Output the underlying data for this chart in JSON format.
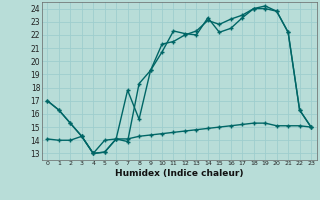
{
  "xlabel": "Humidex (Indice chaleur)",
  "bg_color": "#b8ddd8",
  "grid_color": "#9ecece",
  "line_color": "#006666",
  "x_ticks": [
    0,
    1,
    2,
    3,
    4,
    5,
    6,
    7,
    8,
    9,
    10,
    11,
    12,
    13,
    14,
    15,
    16,
    17,
    18,
    19,
    20,
    21,
    22,
    23
  ],
  "y_ticks": [
    13,
    14,
    15,
    16,
    17,
    18,
    19,
    20,
    21,
    22,
    23,
    24
  ],
  "xlim": [
    -0.5,
    23.5
  ],
  "ylim": [
    12.5,
    24.5
  ],
  "line1_x": [
    0,
    1,
    2,
    3,
    4,
    5,
    6,
    7,
    8,
    9,
    10,
    11,
    12,
    13,
    14,
    15,
    16,
    17,
    18,
    19,
    20,
    21,
    22,
    23
  ],
  "line1_y": [
    17.0,
    16.3,
    15.3,
    14.3,
    13.0,
    13.1,
    14.1,
    17.8,
    15.6,
    19.3,
    20.7,
    22.3,
    22.1,
    22.0,
    23.3,
    22.2,
    22.5,
    23.3,
    24.0,
    24.0,
    23.8,
    22.2,
    16.3,
    15.0
  ],
  "line2_x": [
    0,
    1,
    2,
    3,
    4,
    5,
    6,
    7,
    8,
    9,
    10,
    11,
    12,
    13,
    14,
    15,
    16,
    17,
    18,
    19,
    20,
    21,
    22,
    23
  ],
  "line2_y": [
    17.0,
    16.3,
    15.3,
    14.3,
    13.0,
    13.1,
    14.1,
    13.9,
    18.3,
    19.3,
    21.3,
    21.5,
    22.0,
    22.3,
    23.1,
    22.8,
    23.2,
    23.5,
    24.0,
    24.2,
    23.8,
    22.2,
    16.3,
    15.0
  ],
  "line3_x": [
    0,
    1,
    2,
    3,
    4,
    5,
    6,
    7,
    8,
    9,
    10,
    11,
    12,
    13,
    14,
    15,
    16,
    17,
    18,
    19,
    20,
    21,
    22,
    23
  ],
  "line3_y": [
    14.1,
    14.0,
    14.0,
    14.3,
    13.0,
    14.0,
    14.1,
    14.1,
    14.3,
    14.4,
    14.5,
    14.6,
    14.7,
    14.8,
    14.9,
    15.0,
    15.1,
    15.2,
    15.3,
    15.3,
    15.1,
    15.1,
    15.1,
    15.0
  ]
}
